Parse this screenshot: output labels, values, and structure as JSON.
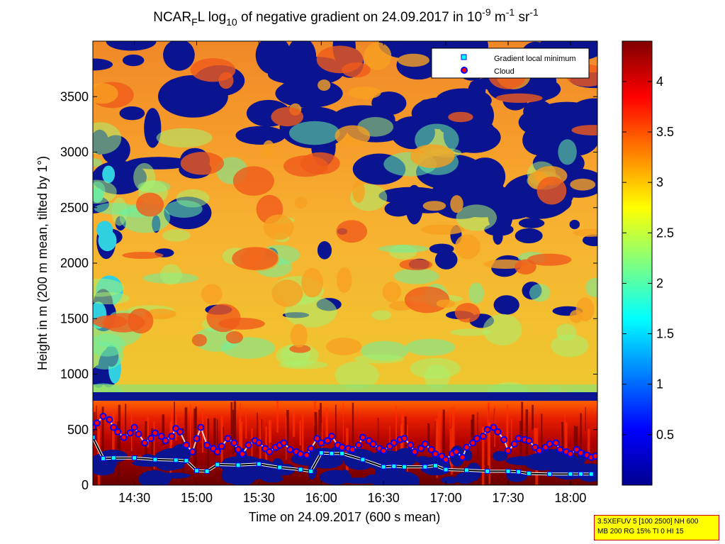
{
  "title": {
    "prefix": "NCAR",
    "sub1": "F",
    "mid": "L log",
    "sub2": "10",
    "suffix": " of negative gradient on 24.09.2017 in 10",
    "sup1": "-9",
    "unit1": " m",
    "sup2": "-1",
    "unit2": " sr",
    "sup3": "-1"
  },
  "chart_data": {
    "type": "heatmap",
    "xlabel": "Time on 24.09.2017 (600 s mean)",
    "ylabel": "Height in m (200 m mean, tilted by 1°)",
    "x_ticks": [
      "14:30",
      "15:00",
      "15:30",
      "16:00",
      "16:30",
      "17:00",
      "17:30",
      "18:00"
    ],
    "xlim": [
      "14:10",
      "18:13"
    ],
    "y_ticks": [
      0,
      500,
      1000,
      1500,
      2000,
      2500,
      3000,
      3500
    ],
    "ylim": [
      0,
      4000
    ],
    "colorbar": {
      "colormap": "jet",
      "ticks": [
        0.5,
        1,
        1.5,
        2,
        2.5,
        3,
        3.5,
        4
      ],
      "range": [
        0,
        4.4
      ]
    },
    "legend": {
      "placement": "top-right",
      "entries": [
        {
          "label": "Gradient local minimum",
          "marker": "square",
          "color": "#00ffff"
        },
        {
          "label": "Cloud",
          "marker": "circle",
          "color": "#ff0000",
          "edge": "#0000ff"
        }
      ]
    },
    "bands": {
      "dark_blue_band_m": [
        760,
        830
      ],
      "high_return_layer_m": [
        0,
        720
      ],
      "aerosol_layer_m": [
        830,
        2500
      ]
    },
    "series": [
      {
        "name": "Gradient local minimum",
        "x": [
          "14:10",
          "14:15",
          "14:20",
          "14:30",
          "14:40",
          "14:50",
          "14:55",
          "15:00",
          "15:05",
          "15:10",
          "15:20",
          "15:30",
          "15:40",
          "15:50",
          "15:55",
          "16:00",
          "16:05",
          "16:10",
          "16:20",
          "16:30",
          "16:35",
          "16:40",
          "16:50",
          "16:55",
          "17:00",
          "17:10",
          "17:20",
          "17:30",
          "17:35",
          "17:40",
          "17:50",
          "18:00",
          "18:05",
          "18:10"
        ],
        "y": [
          430,
          240,
          245,
          245,
          230,
          225,
          220,
          130,
          125,
          185,
          180,
          190,
          160,
          140,
          125,
          290,
          285,
          285,
          230,
          165,
          170,
          165,
          165,
          175,
          140,
          135,
          125,
          125,
          120,
          105,
          100,
          100,
          100,
          100
        ]
      },
      {
        "name": "Cloud",
        "x": [
          "14:10",
          "14:12",
          "14:15",
          "14:18",
          "14:20",
          "14:22",
          "14:25",
          "14:28",
          "14:30",
          "14:32",
          "14:35",
          "14:38",
          "14:40",
          "14:43",
          "14:45",
          "14:48",
          "14:50",
          "14:52",
          "14:55",
          "14:58",
          "15:00",
          "15:02",
          "15:05",
          "15:08",
          "15:10",
          "15:12",
          "15:15",
          "15:18",
          "15:20",
          "15:22",
          "15:25",
          "15:28",
          "15:30",
          "15:33",
          "15:35",
          "15:38",
          "15:40",
          "15:42",
          "15:45",
          "15:48",
          "15:50",
          "15:53",
          "15:55",
          "15:58",
          "16:00",
          "16:03",
          "16:05",
          "16:08",
          "16:10",
          "16:13",
          "16:15",
          "16:18",
          "16:20",
          "16:23",
          "16:25",
          "16:28",
          "16:30",
          "16:33",
          "16:35",
          "16:38",
          "16:40",
          "16:43",
          "16:45",
          "16:48",
          "16:50",
          "16:53",
          "16:55",
          "16:58",
          "17:00",
          "17:03",
          "17:05",
          "17:08",
          "17:10",
          "17:13",
          "17:15",
          "17:18",
          "17:20",
          "17:23",
          "17:25",
          "17:28",
          "17:30",
          "17:33",
          "17:35",
          "17:38",
          "17:40",
          "17:43",
          "17:45",
          "17:48",
          "17:50",
          "17:53",
          "17:55",
          "17:58",
          "18:00",
          "18:03",
          "18:05",
          "18:08",
          "18:10",
          "18:12"
        ],
        "y": [
          520,
          560,
          620,
          590,
          520,
          480,
          430,
          470,
          520,
          460,
          380,
          420,
          470,
          440,
          400,
          440,
          510,
          480,
          360,
          300,
          420,
          520,
          360,
          330,
          300,
          350,
          420,
          380,
          320,
          280,
          360,
          400,
          380,
          330,
          300,
          340,
          360,
          380,
          320,
          300,
          280,
          270,
          330,
          420,
          380,
          400,
          440,
          360,
          340,
          330,
          320,
          360,
          430,
          400,
          370,
          330,
          310,
          350,
          380,
          410,
          420,
          360,
          300,
          330,
          370,
          320,
          280,
          260,
          230,
          280,
          300,
          250,
          340,
          380,
          420,
          440,
          500,
          520,
          480,
          410,
          310,
          370,
          420,
          410,
          400,
          340,
          310,
          340,
          370,
          380,
          320,
          300,
          280,
          320,
          290,
          270,
          250,
          260
        ]
      }
    ]
  },
  "info_box": {
    "line1": "3.5XEFUV 5 [100 2500] NH 600",
    "line2": "MB 200 RG 15% TI 0 HI 15"
  }
}
